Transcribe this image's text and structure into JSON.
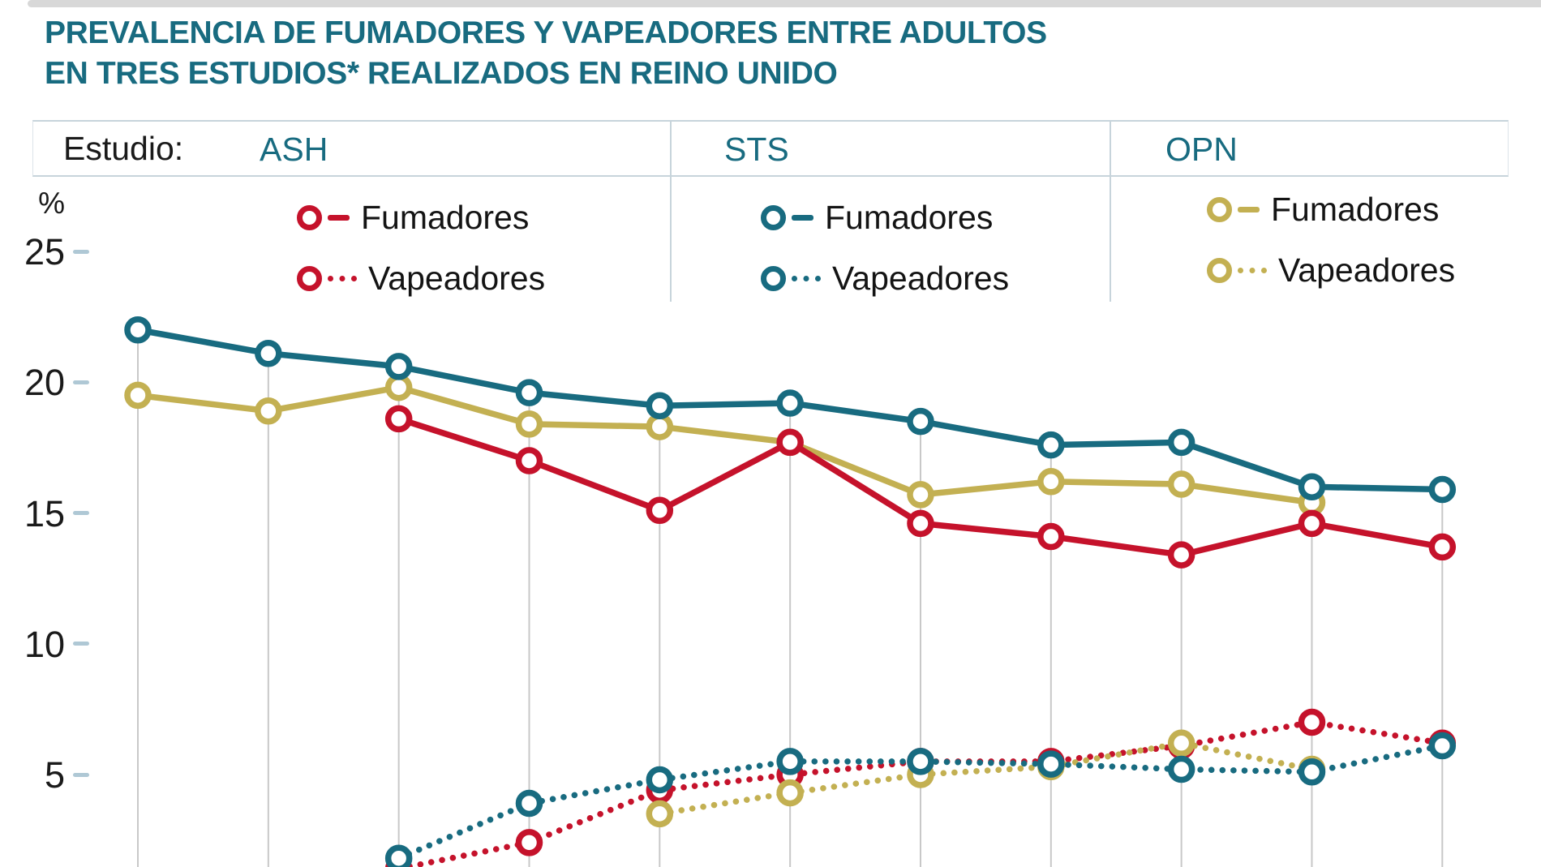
{
  "title": {
    "line1": "PREVALENCIA DE FUMADORES Y VAPEADORES ENTRE ADULTOS",
    "line2": "EN TRES ESTUDIOS* REALIZADOS EN REINO UNIDO"
  },
  "legend": {
    "label": "Estudio:",
    "studies": [
      {
        "name": "ASH",
        "color": "#C5122B",
        "entries": [
          {
            "label": "Fumadores",
            "line_style": "solid"
          },
          {
            "label": "Vapeadores",
            "line_style": "dotted"
          }
        ]
      },
      {
        "name": "STS",
        "color": "#186B80",
        "entries": [
          {
            "label": "Fumadores",
            "line_style": "solid"
          },
          {
            "label": "Vapeadores",
            "line_style": "dotted"
          }
        ]
      },
      {
        "name": "OPN",
        "color": "#C3B052",
        "entries": [
          {
            "label": "Fumadores",
            "line_style": "solid"
          },
          {
            "label": "Vapeadores",
            "line_style": "dotted"
          }
        ]
      }
    ]
  },
  "y_axis": {
    "unit_label": "%",
    "ticks": [
      25,
      20,
      15,
      10,
      5
    ]
  },
  "x_axis": {
    "labels_visible": false,
    "gridline_count": 11
  },
  "chart_data": {
    "type": "line",
    "title": "Prevalencia de fumadores y vapeadores entre adultos en tres estudios realizados en Reino Unido",
    "ylabel": "%",
    "ylim_visible": [
      1.4,
      25
    ],
    "grid": "vertical-only",
    "legend_position": "top",
    "x_note": "11 evenly spaced gridlines; year tick labels are cropped below the visible area",
    "series": [
      {
        "study": "ASH",
        "measure": "Fumadores",
        "color": "#C5122B",
        "line_style": "solid",
        "points": [
          [
            3,
            18.6
          ],
          [
            4,
            17.0
          ],
          [
            5,
            15.1
          ],
          [
            6,
            17.7
          ],
          [
            7,
            14.6
          ],
          [
            8,
            14.1
          ],
          [
            9,
            13.4
          ],
          [
            10,
            14.6
          ],
          [
            11,
            13.7
          ]
        ]
      },
      {
        "study": "ASH",
        "measure": "Vapeadores",
        "color": "#C5122B",
        "line_style": "dotted",
        "points": [
          [
            3,
            1.4
          ],
          [
            4,
            2.4
          ],
          [
            5,
            4.4
          ],
          [
            6,
            5.0
          ],
          [
            7,
            5.5
          ],
          [
            8,
            5.5
          ],
          [
            9,
            6.1
          ],
          [
            10,
            7.0
          ],
          [
            11,
            6.2
          ]
        ]
      },
      {
        "study": "STS",
        "measure": "Fumadores",
        "color": "#186B80",
        "line_style": "solid",
        "points": [
          [
            1,
            22.0
          ],
          [
            2,
            21.1
          ],
          [
            3,
            20.6
          ],
          [
            4,
            19.6
          ],
          [
            5,
            19.1
          ],
          [
            6,
            19.2
          ],
          [
            7,
            18.5
          ],
          [
            8,
            17.6
          ],
          [
            9,
            17.7
          ],
          [
            10,
            16.0
          ],
          [
            11,
            15.9
          ]
        ]
      },
      {
        "study": "STS",
        "measure": "Vapeadores",
        "color": "#186B80",
        "line_style": "dotted",
        "points": [
          [
            3,
            1.8
          ],
          [
            4,
            3.9
          ],
          [
            5,
            4.8
          ],
          [
            6,
            5.5
          ],
          [
            7,
            5.5
          ],
          [
            8,
            5.4
          ],
          [
            9,
            5.2
          ],
          [
            10,
            5.1
          ],
          [
            11,
            6.1
          ]
        ]
      },
      {
        "study": "OPN",
        "measure": "Fumadores",
        "color": "#C3B052",
        "line_style": "solid",
        "points": [
          [
            1,
            19.5
          ],
          [
            2,
            18.9
          ],
          [
            3,
            19.8
          ],
          [
            4,
            18.4
          ],
          [
            5,
            18.3
          ],
          [
            6,
            17.7
          ],
          [
            7,
            15.7
          ],
          [
            8,
            16.2
          ],
          [
            9,
            16.1
          ],
          [
            10,
            15.4
          ]
        ]
      },
      {
        "study": "OPN",
        "measure": "Vapeadores",
        "color": "#C3B052",
        "line_style": "dotted",
        "points": [
          [
            5,
            3.5
          ],
          [
            6,
            4.3
          ],
          [
            7,
            5.0
          ],
          [
            8,
            5.3
          ],
          [
            9,
            6.2
          ],
          [
            10,
            5.2
          ]
        ]
      }
    ],
    "draw_order": [
      1,
      5,
      3,
      4,
      0,
      2
    ]
  }
}
